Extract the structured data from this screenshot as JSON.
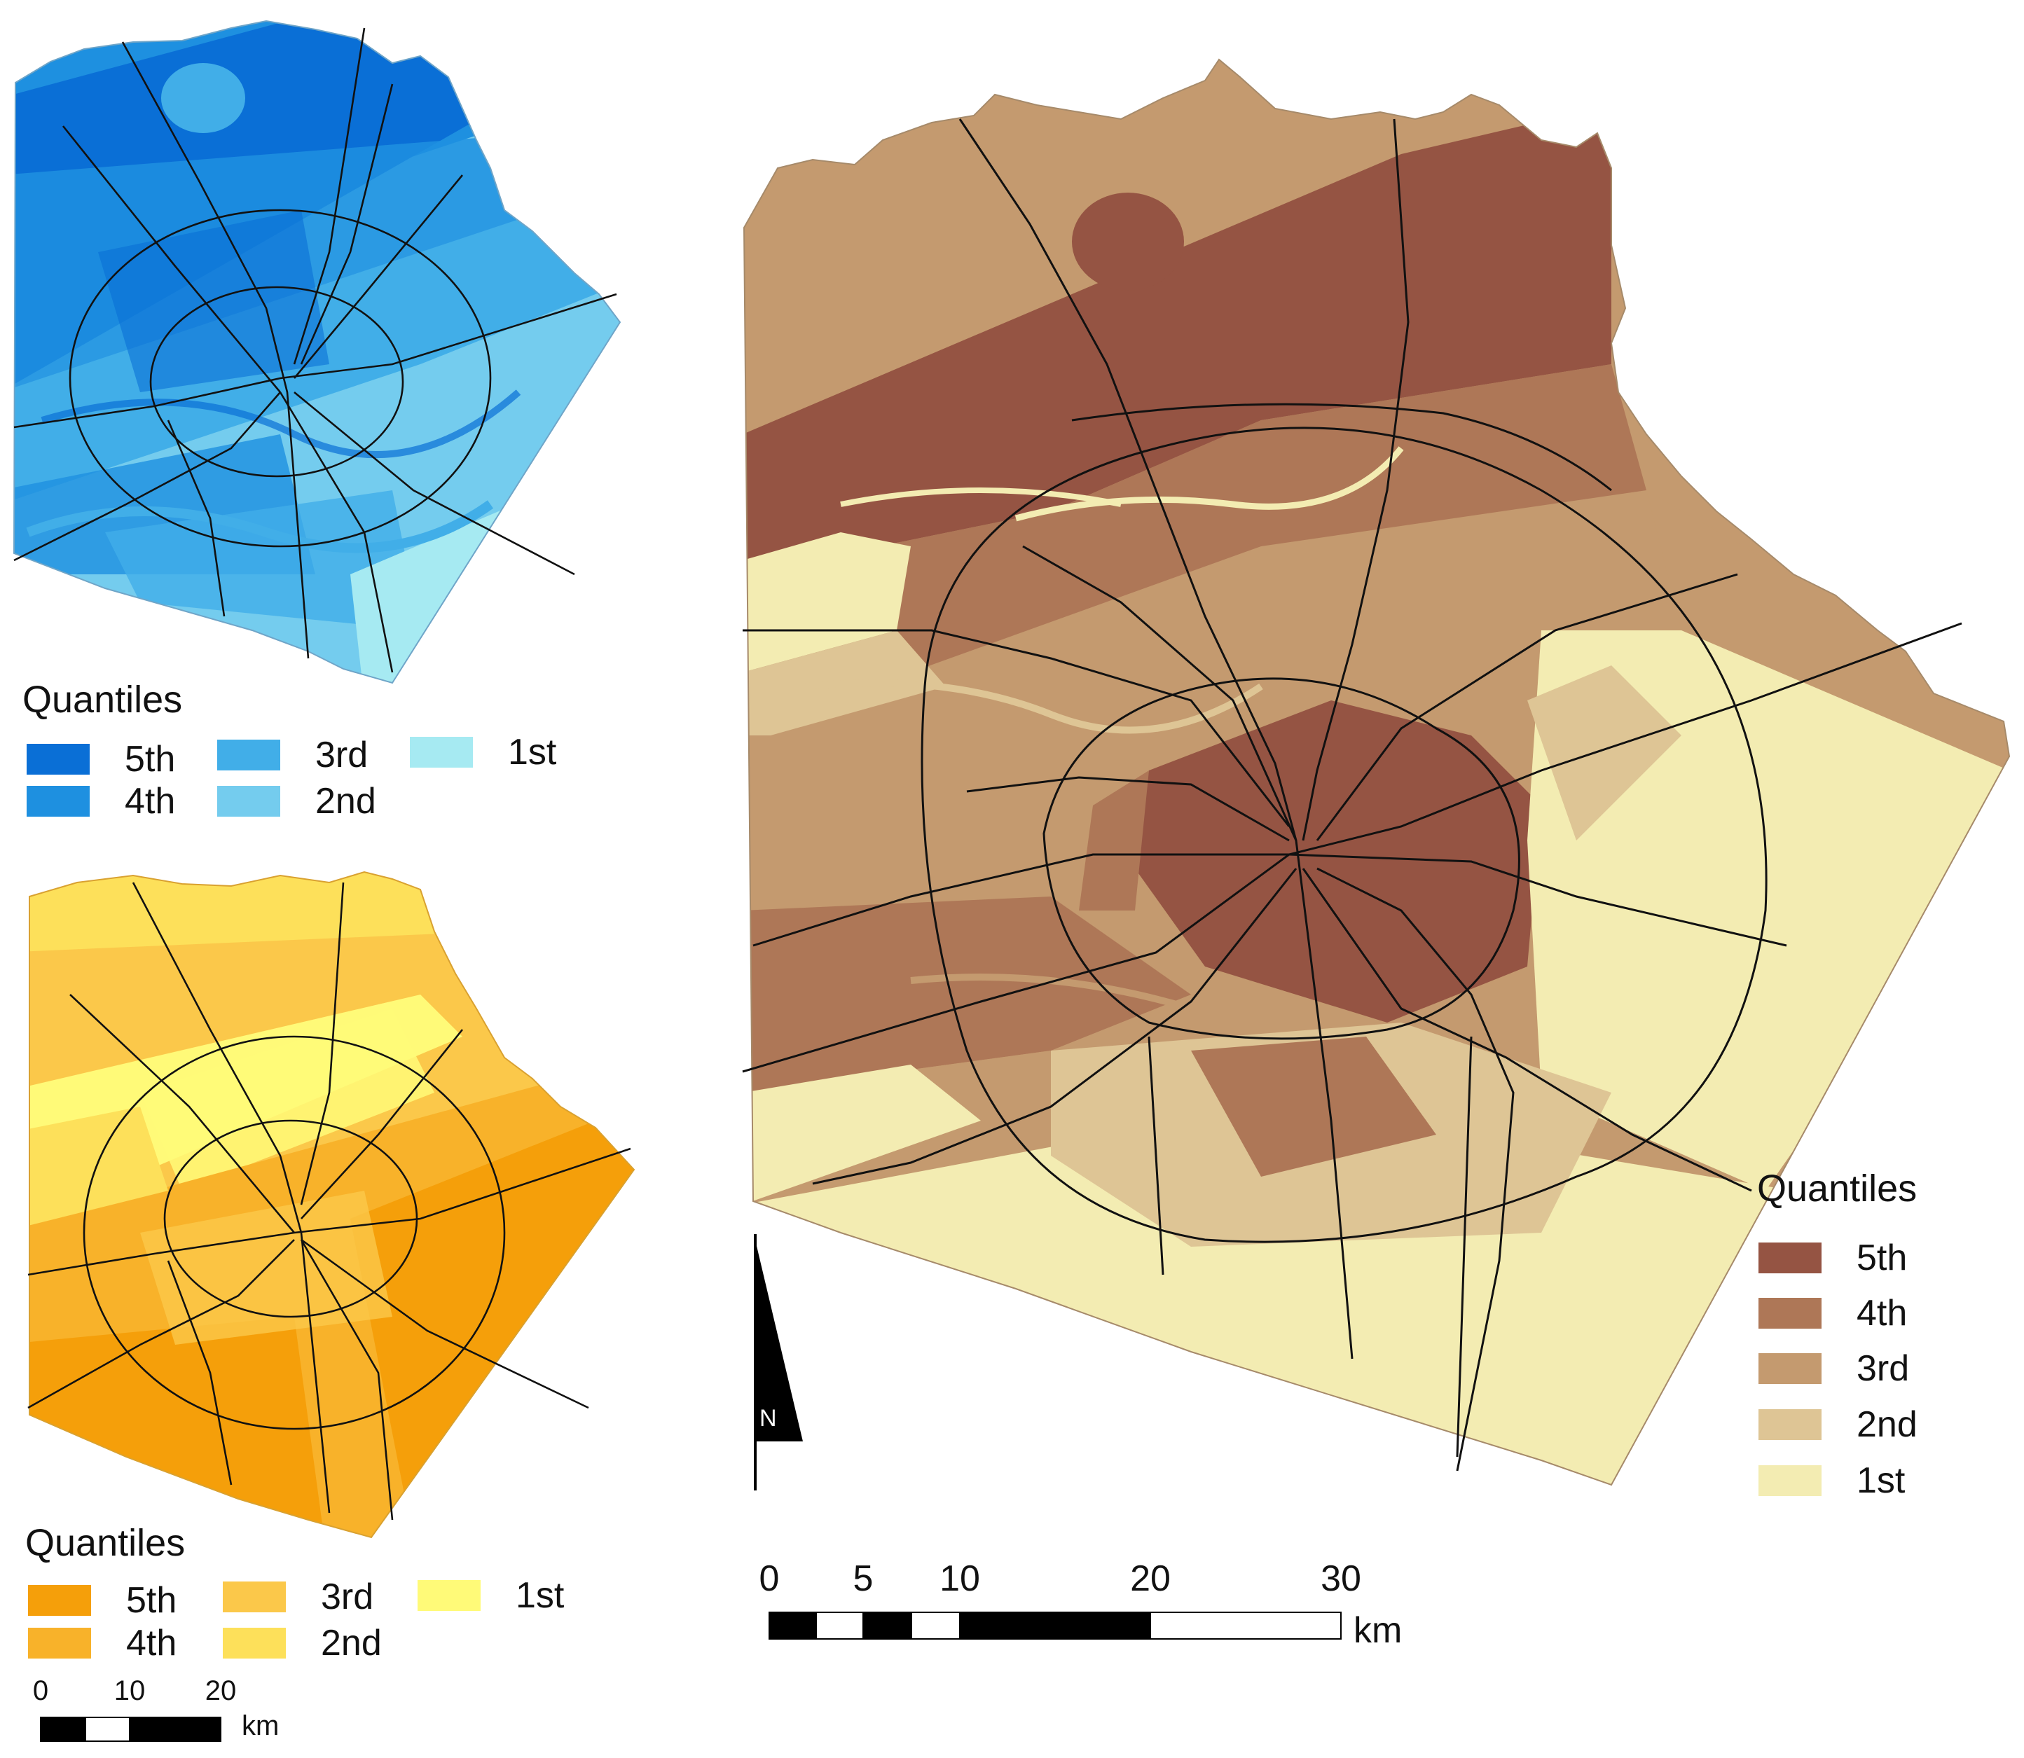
{
  "maps": {
    "blue": {
      "legend": {
        "title": "Quantiles",
        "items": [
          {
            "label": "5th",
            "color": "#0a6fd6"
          },
          {
            "label": "4th",
            "color": "#1e90e0"
          },
          {
            "label": "3rd",
            "color": "#41aee8"
          },
          {
            "label": "2nd",
            "color": "#74ccee"
          },
          {
            "label": "1st",
            "color": "#a6eaf2"
          }
        ]
      }
    },
    "orange": {
      "legend": {
        "title": "Quantiles",
        "items": [
          {
            "label": "5th",
            "color": "#f59f0a"
          },
          {
            "label": "4th",
            "color": "#f8b22a"
          },
          {
            "label": "3rd",
            "color": "#fbc84a"
          },
          {
            "label": "2nd",
            "color": "#fde05a"
          },
          {
            "label": "1st",
            "color": "#fffa78"
          }
        ]
      },
      "scale": {
        "ticks": [
          "0",
          "10",
          "20"
        ],
        "unit": "km"
      }
    },
    "brown": {
      "legend": {
        "title": "Quantiles",
        "items": [
          {
            "label": "5th",
            "color": "#955443"
          },
          {
            "label": "4th",
            "color": "#ae7757"
          },
          {
            "label": "3rd",
            "color": "#c49a6f"
          },
          {
            "label": "2nd",
            "color": "#dec595"
          },
          {
            "label": "1st",
            "color": "#f3ecb2"
          }
        ]
      },
      "scale": {
        "ticks": [
          "0",
          "5",
          "10",
          "20",
          "30"
        ],
        "unit": "km"
      },
      "north_arrow": "N"
    }
  }
}
